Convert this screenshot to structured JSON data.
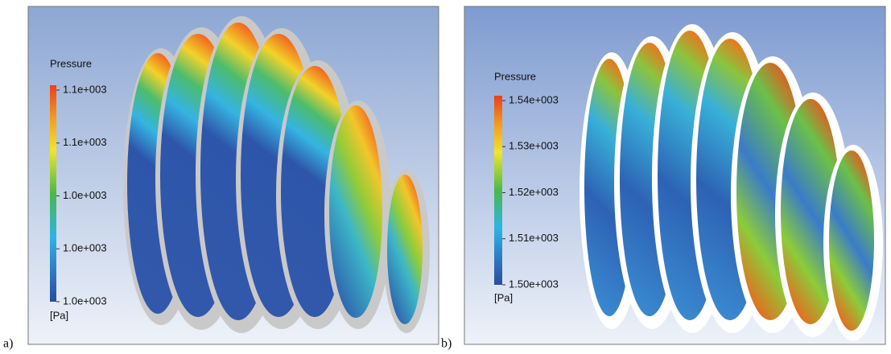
{
  "panels": [
    {
      "label": "a)",
      "legend": {
        "title": "Pressure",
        "ticks": [
          "1.1e+003",
          "1.1e+003",
          "1.0e+003",
          "1.0e+003",
          "1.0e+003"
        ],
        "unit": "[Pa]"
      }
    },
    {
      "label": "b)",
      "legend": {
        "title": "Pressure",
        "ticks": [
          "1.54e+003",
          "1.53e+003",
          "1.52e+003",
          "1.51e+003",
          "1.50e+003"
        ],
        "unit": "[Pa]"
      }
    }
  ]
}
